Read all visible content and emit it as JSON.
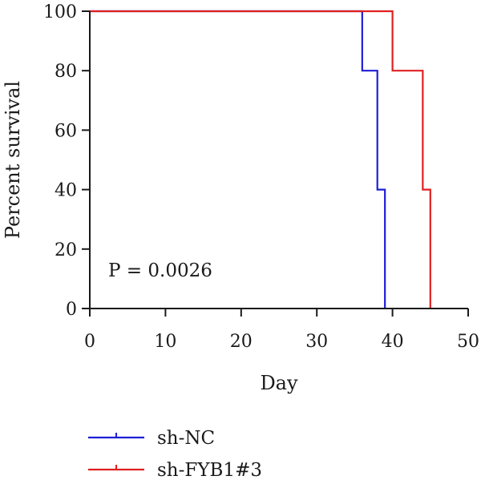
{
  "chart_data": {
    "type": "line",
    "step": true,
    "xlabel": "Day",
    "ylabel": "Percent survival",
    "xlim": [
      0,
      50
    ],
    "ylim": [
      0,
      100
    ],
    "xticks": [
      "0",
      "10",
      "20",
      "30",
      "40",
      "50"
    ],
    "yticks": [
      "0",
      "20",
      "40",
      "60",
      "80",
      "100"
    ],
    "grid": false,
    "legend_position": "bottom-left",
    "annotation": "P = 0.0026",
    "series": [
      {
        "name": "sh-NC",
        "color": "#1f1fd6",
        "x": [
          0,
          36,
          36,
          38,
          38,
          39,
          39
        ],
        "y": [
          100,
          100,
          80,
          80,
          40,
          40,
          0
        ]
      },
      {
        "name": "sh-FYB1#3",
        "color": "#e02020",
        "x": [
          0,
          40,
          40,
          44,
          44,
          45,
          45
        ],
        "y": [
          100,
          100,
          80,
          80,
          40,
          40,
          0
        ]
      }
    ]
  }
}
